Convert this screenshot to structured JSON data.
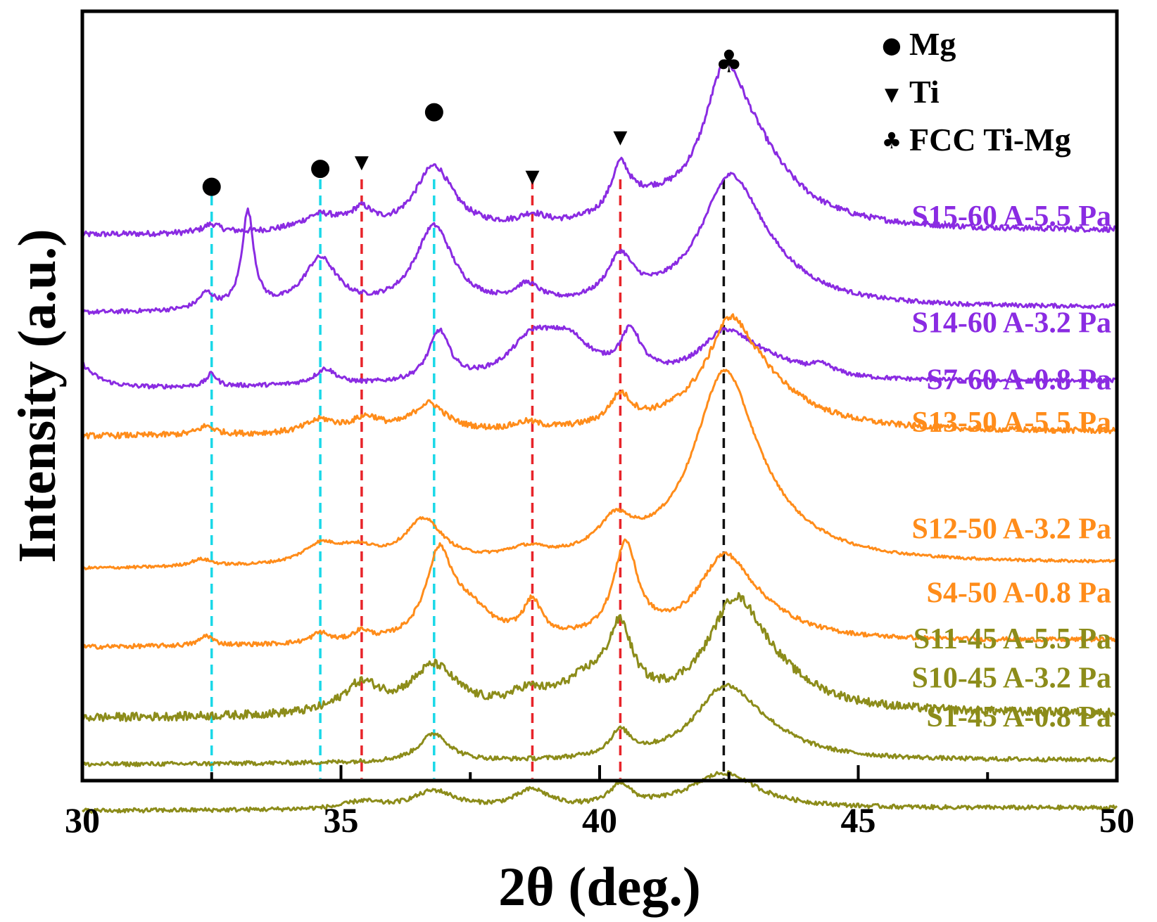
{
  "chart_data": {
    "type": "line",
    "title": "",
    "xlabel": "2θ (deg.)",
    "ylabel": "Intensity (a.u.)",
    "xlim": [
      30,
      50
    ],
    "xticks": [
      30,
      35,
      40,
      45,
      50
    ],
    "colors": {
      "purple": "#8a2be2",
      "orange": "#ff8c1a",
      "olive": "#8c8c1a",
      "cyan": "#1ad8e8",
      "red": "#e8242a",
      "black": "#111111"
    },
    "series": [
      {
        "name": "S15-60 A-5.5 Pa",
        "color": "purple",
        "baseline": 0.0,
        "slope": 0.006,
        "noise": 0.004,
        "peaks": [
          [
            32.5,
            0.012,
            0.2
          ],
          [
            34.6,
            0.022,
            0.45
          ],
          [
            35.4,
            0.025,
            0.25
          ],
          [
            36.8,
            0.09,
            0.45
          ],
          [
            38.7,
            0.014,
            0.3
          ],
          [
            40.4,
            0.065,
            0.22
          ],
          [
            40.9,
            0.02,
            0.6
          ],
          [
            42.4,
            0.13,
            0.45
          ],
          [
            42.8,
            0.12,
            1.0
          ]
        ]
      },
      {
        "name": "S14-60 A-3.2 Pa",
        "color": "purple",
        "baseline": 0.11,
        "slope": 0.008,
        "noise": 0.003,
        "peaks": [
          [
            32.4,
            0.022,
            0.18
          ],
          [
            33.2,
            0.135,
            0.14
          ],
          [
            34.6,
            0.07,
            0.4
          ],
          [
            36.8,
            0.115,
            0.45
          ],
          [
            38.6,
            0.025,
            0.3
          ],
          [
            40.4,
            0.06,
            0.3
          ],
          [
            42.5,
            0.135,
            0.65
          ],
          [
            42.9,
            0.06,
            1.1
          ]
        ]
      },
      {
        "name": "S7-60 A-0.8 Pa",
        "color": "purple",
        "baseline": 0.215,
        "slope": 0.01,
        "noise": 0.003,
        "startHump": 0.035,
        "peaks": [
          [
            32.5,
            0.018,
            0.12
          ],
          [
            34.7,
            0.022,
            0.25
          ],
          [
            36.9,
            0.07,
            0.25
          ],
          [
            38.7,
            0.055,
            0.55
          ],
          [
            39.4,
            0.05,
            0.55
          ],
          [
            40.6,
            0.06,
            0.25
          ],
          [
            42.4,
            0.05,
            0.55
          ],
          [
            43.0,
            0.03,
            1.0
          ],
          [
            44.3,
            0.012,
            0.3
          ]
        ]
      },
      {
        "name": "S13-50 A-5.5 Pa",
        "color": "orange",
        "baseline": 0.283,
        "slope": 0.006,
        "noise": 0.004,
        "peaks": [
          [
            32.4,
            0.012,
            0.2
          ],
          [
            34.6,
            0.018,
            0.35
          ],
          [
            35.5,
            0.02,
            0.35
          ],
          [
            36.7,
            0.04,
            0.4
          ],
          [
            38.6,
            0.01,
            0.3
          ],
          [
            40.4,
            0.04,
            0.25
          ],
          [
            42.5,
            0.08,
            0.45
          ],
          [
            42.8,
            0.09,
            1.1
          ]
        ]
      },
      {
        "name": "S12-50 A-3.2 Pa",
        "color": "orange",
        "baseline": 0.47,
        "slope": 0.008,
        "noise": 0.002,
        "peaks": [
          [
            32.3,
            0.01,
            0.25
          ],
          [
            34.6,
            0.025,
            0.4
          ],
          [
            35.3,
            0.02,
            0.5
          ],
          [
            36.6,
            0.06,
            0.45
          ],
          [
            38.6,
            0.015,
            0.5
          ],
          [
            40.3,
            0.045,
            0.4
          ],
          [
            42.4,
            0.23,
            0.7
          ],
          [
            42.9,
            0.05,
            1.2
          ]
        ]
      },
      {
        "name": "S4-50 A-0.8 Pa",
        "color": "orange",
        "baseline": 0.58,
        "slope": 0.01,
        "noise": 0.003,
        "peaks": [
          [
            32.4,
            0.014,
            0.15
          ],
          [
            34.6,
            0.014,
            0.2
          ],
          [
            35.4,
            0.014,
            0.2
          ],
          [
            36.9,
            0.12,
            0.32
          ],
          [
            37.5,
            0.04,
            0.5
          ],
          [
            38.7,
            0.05,
            0.22
          ],
          [
            40.5,
            0.13,
            0.28
          ],
          [
            42.4,
            0.1,
            0.6
          ],
          [
            43.0,
            0.03,
            1.0
          ]
        ]
      },
      {
        "name": "S11-45 A-5.5 Pa",
        "color": "olive",
        "baseline": 0.68,
        "slope": 0.006,
        "noise": 0.006,
        "peaks": [
          [
            35.4,
            0.04,
            0.45
          ],
          [
            36.8,
            0.065,
            0.55
          ],
          [
            38.6,
            0.02,
            0.4
          ],
          [
            40.4,
            0.095,
            0.28
          ],
          [
            39.8,
            0.04,
            0.7
          ],
          [
            42.6,
            0.11,
            0.6
          ],
          [
            43.0,
            0.06,
            1.1
          ]
        ]
      },
      {
        "name": "S10-45 A-3.2 Pa",
        "color": "olive",
        "baseline": 0.745,
        "slope": 0.006,
        "noise": 0.003,
        "peaks": [
          [
            36.8,
            0.04,
            0.35
          ],
          [
            40.4,
            0.035,
            0.25
          ],
          [
            42.4,
            0.085,
            0.7
          ],
          [
            43.0,
            0.03,
            1.0
          ]
        ]
      },
      {
        "name": "S1-45 A-0.8 Pa",
        "color": "olive",
        "baseline": 0.81,
        "slope": 0.004,
        "noise": 0.003,
        "peaks": [
          [
            35.4,
            0.01,
            0.4
          ],
          [
            36.8,
            0.025,
            0.5
          ],
          [
            38.7,
            0.025,
            0.4
          ],
          [
            40.4,
            0.03,
            0.25
          ],
          [
            42.4,
            0.05,
            0.8
          ]
        ]
      }
    ],
    "labels": [
      {
        "text": "S15-60 A-5.5 Pa",
        "color": "purple",
        "y": 0.0
      },
      {
        "text": "S14-60 A-3.2 Pa",
        "color": "purple",
        "y": 0.15
      },
      {
        "text": "S7-60 A-0.8 Pa",
        "color": "purple",
        "y": 0.23
      },
      {
        "text": "S13-50 A-5.5 Pa",
        "color": "orange",
        "y": 0.29
      },
      {
        "text": "S12-50 A-3.2 Pa",
        "color": "orange",
        "y": 0.44
      },
      {
        "text": "S4-50 A-0.8 Pa",
        "color": "orange",
        "y": 0.53
      },
      {
        "text": "S11-45 A-5.5 Pa",
        "color": "olive",
        "y": 0.595
      },
      {
        "text": "S10-45 A-3.2 Pa",
        "color": "olive",
        "y": 0.65
      },
      {
        "text": "S1-45 A-0.8 Pa",
        "color": "olive",
        "y": 0.705
      }
    ],
    "reference_lines": [
      {
        "x": 32.5,
        "color": "cyan",
        "phase": "Mg"
      },
      {
        "x": 34.6,
        "color": "cyan",
        "phase": "Mg"
      },
      {
        "x": 36.8,
        "color": "cyan",
        "phase": "Mg"
      },
      {
        "x": 35.4,
        "color": "red",
        "phase": "Ti"
      },
      {
        "x": 38.7,
        "color": "red",
        "phase": "Ti"
      },
      {
        "x": 40.4,
        "color": "red",
        "phase": "Ti"
      },
      {
        "x": 42.4,
        "color": "black",
        "phase": "FCC Ti-Mg"
      }
    ],
    "peak_markers": [
      {
        "x": 32.5,
        "glyph": "●",
        "y": -0.06
      },
      {
        "x": 34.6,
        "glyph": "●",
        "y": -0.085
      },
      {
        "x": 35.4,
        "glyph": "▼",
        "y": -0.095
      },
      {
        "x": 36.8,
        "glyph": "●",
        "y": -0.165
      },
      {
        "x": 38.7,
        "glyph": "▼",
        "y": -0.075
      },
      {
        "x": 40.4,
        "glyph": "▼",
        "y": -0.13
      },
      {
        "x": 42.5,
        "glyph": "♣",
        "y": -0.23
      }
    ],
    "legend": {
      "position": "top-right",
      "items": [
        {
          "glyph": "●",
          "label": "Mg"
        },
        {
          "glyph": "▼",
          "label": "Ti"
        },
        {
          "glyph": "♣",
          "label": "FCC Ti-Mg"
        }
      ]
    }
  }
}
